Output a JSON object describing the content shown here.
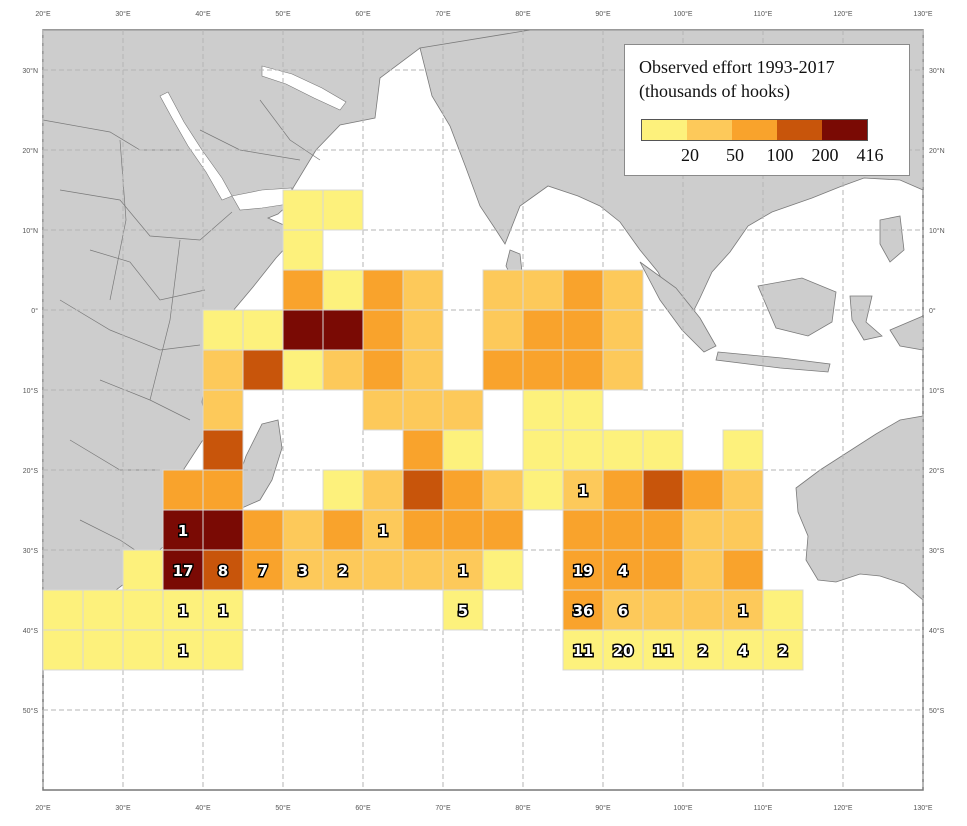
{
  "legend": {
    "title_line1": "Observed effort 1993-2017",
    "title_line2": "(thousands of hooks)",
    "breaks": [
      "20",
      "50",
      "100",
      "200",
      "416"
    ],
    "colors": [
      "#fdf17c",
      "#fdc95a",
      "#f9a32c",
      "#c8550b",
      "#7a0a04"
    ]
  },
  "axes": {
    "lon_labels": [
      "20°E",
      "30°E",
      "40°E",
      "50°E",
      "60°E",
      "70°E",
      "80°E",
      "90°E",
      "100°E",
      "110°E",
      "120°E",
      "130°E"
    ],
    "lat_labels": [
      "30°N",
      "20°N",
      "10°N",
      "0°",
      "10°S",
      "20°S",
      "30°S",
      "40°S",
      "50°S"
    ]
  },
  "colors": {
    "land": "#cdcdcd",
    "border": "#7a7a7a",
    "ocean": "#ffffff",
    "grid": "#b5b5b5",
    "cell_edge": "#d8d8d8"
  },
  "cells": [
    {
      "lon": 50,
      "lat": 15,
      "level": 0
    },
    {
      "lon": 55,
      "lat": 15,
      "level": 0
    },
    {
      "lon": 50,
      "lat": 10,
      "level": 0
    },
    {
      "lon": 50,
      "lat": 5,
      "level": 2
    },
    {
      "lon": 55,
      "lat": 5,
      "level": 0
    },
    {
      "lon": 60,
      "lat": 5,
      "level": 2
    },
    {
      "lon": 65,
      "lat": 5,
      "level": 1
    },
    {
      "lon": 75,
      "lat": 5,
      "level": 1
    },
    {
      "lon": 80,
      "lat": 5,
      "level": 1
    },
    {
      "lon": 85,
      "lat": 5,
      "level": 2
    },
    {
      "lon": 90,
      "lat": 5,
      "level": 1
    },
    {
      "lon": 40,
      "lat": 0,
      "level": 0
    },
    {
      "lon": 45,
      "lat": 0,
      "level": 0
    },
    {
      "lon": 50,
      "lat": 0,
      "level": 4
    },
    {
      "lon": 55,
      "lat": 0,
      "level": 4
    },
    {
      "lon": 60,
      "lat": 0,
      "level": 2
    },
    {
      "lon": 65,
      "lat": 0,
      "level": 1
    },
    {
      "lon": 75,
      "lat": 0,
      "level": 1
    },
    {
      "lon": 80,
      "lat": 0,
      "level": 2
    },
    {
      "lon": 85,
      "lat": 0,
      "level": 2
    },
    {
      "lon": 90,
      "lat": 0,
      "level": 1
    },
    {
      "lon": 40,
      "lat": -5,
      "level": 1
    },
    {
      "lon": 45,
      "lat": -5,
      "level": 3
    },
    {
      "lon": 50,
      "lat": -5,
      "level": 0
    },
    {
      "lon": 55,
      "lat": -5,
      "level": 1
    },
    {
      "lon": 60,
      "lat": -5,
      "level": 2
    },
    {
      "lon": 65,
      "lat": -5,
      "level": 1
    },
    {
      "lon": 75,
      "lat": -5,
      "level": 2
    },
    {
      "lon": 80,
      "lat": -5,
      "level": 2
    },
    {
      "lon": 85,
      "lat": -5,
      "level": 2
    },
    {
      "lon": 90,
      "lat": -5,
      "level": 1
    },
    {
      "lon": 40,
      "lat": -10,
      "level": 1
    },
    {
      "lon": 60,
      "lat": -10,
      "level": 1
    },
    {
      "lon": 65,
      "lat": -10,
      "level": 1
    },
    {
      "lon": 70,
      "lat": -10,
      "level": 1
    },
    {
      "lon": 80,
      "lat": -10,
      "level": 0
    },
    {
      "lon": 85,
      "lat": -10,
      "level": 0
    },
    {
      "lon": 40,
      "lat": -15,
      "level": 3
    },
    {
      "lon": 65,
      "lat": -15,
      "level": 2
    },
    {
      "lon": 70,
      "lat": -15,
      "level": 0
    },
    {
      "lon": 80,
      "lat": -15,
      "level": 0
    },
    {
      "lon": 85,
      "lat": -15,
      "level": 0
    },
    {
      "lon": 90,
      "lat": -15,
      "level": 0
    },
    {
      "lon": 95,
      "lat": -15,
      "level": 0
    },
    {
      "lon": 105,
      "lat": -15,
      "level": 0
    },
    {
      "lon": 35,
      "lat": -20,
      "level": 2
    },
    {
      "lon": 40,
      "lat": -20,
      "level": 2
    },
    {
      "lon": 55,
      "lat": -20,
      "level": 0
    },
    {
      "lon": 60,
      "lat": -20,
      "level": 1
    },
    {
      "lon": 65,
      "lat": -20,
      "level": 3
    },
    {
      "lon": 70,
      "lat": -20,
      "level": 2
    },
    {
      "lon": 75,
      "lat": -20,
      "level": 1
    },
    {
      "lon": 80,
      "lat": -20,
      "level": 0
    },
    {
      "lon": 85,
      "lat": -20,
      "level": 1,
      "count": "1"
    },
    {
      "lon": 90,
      "lat": -20,
      "level": 2
    },
    {
      "lon": 95,
      "lat": -20,
      "level": 3
    },
    {
      "lon": 100,
      "lat": -20,
      "level": 2
    },
    {
      "lon": 105,
      "lat": -20,
      "level": 1
    },
    {
      "lon": 35,
      "lat": -25,
      "level": 4,
      "count": "1"
    },
    {
      "lon": 40,
      "lat": -25,
      "level": 4
    },
    {
      "lon": 45,
      "lat": -25,
      "level": 2
    },
    {
      "lon": 50,
      "lat": -25,
      "level": 1
    },
    {
      "lon": 55,
      "lat": -25,
      "level": 2
    },
    {
      "lon": 60,
      "lat": -25,
      "level": 1,
      "count": "1"
    },
    {
      "lon": 65,
      "lat": -25,
      "level": 2
    },
    {
      "lon": 70,
      "lat": -25,
      "level": 2
    },
    {
      "lon": 75,
      "lat": -25,
      "level": 2
    },
    {
      "lon": 85,
      "lat": -25,
      "level": 2
    },
    {
      "lon": 90,
      "lat": -25,
      "level": 2
    },
    {
      "lon": 95,
      "lat": -25,
      "level": 2
    },
    {
      "lon": 100,
      "lat": -25,
      "level": 1
    },
    {
      "lon": 105,
      "lat": -25,
      "level": 1
    },
    {
      "lon": 30,
      "lat": -30,
      "level": 0
    },
    {
      "lon": 35,
      "lat": -30,
      "level": 4,
      "count": "17"
    },
    {
      "lon": 40,
      "lat": -30,
      "level": 3,
      "count": "8"
    },
    {
      "lon": 45,
      "lat": -30,
      "level": 2,
      "count": "7"
    },
    {
      "lon": 50,
      "lat": -30,
      "level": 1,
      "count": "3"
    },
    {
      "lon": 55,
      "lat": -30,
      "level": 1,
      "count": "2"
    },
    {
      "lon": 60,
      "lat": -30,
      "level": 1
    },
    {
      "lon": 65,
      "lat": -30,
      "level": 1
    },
    {
      "lon": 70,
      "lat": -30,
      "level": 1,
      "count": "1"
    },
    {
      "lon": 75,
      "lat": -30,
      "level": 0
    },
    {
      "lon": 85,
      "lat": -30,
      "level": 2,
      "count": "19"
    },
    {
      "lon": 90,
      "lat": -30,
      "level": 2,
      "count": "4"
    },
    {
      "lon": 95,
      "lat": -30,
      "level": 2
    },
    {
      "lon": 100,
      "lat": -30,
      "level": 1
    },
    {
      "lon": 105,
      "lat": -30,
      "level": 2
    },
    {
      "lon": 20,
      "lat": -35,
      "level": 0
    },
    {
      "lon": 25,
      "lat": -35,
      "level": 0
    },
    {
      "lon": 30,
      "lat": -35,
      "level": 0
    },
    {
      "lon": 35,
      "lat": -35,
      "level": 0,
      "count": "1"
    },
    {
      "lon": 40,
      "lat": -35,
      "level": 0,
      "count": "1"
    },
    {
      "lon": 70,
      "lat": -35,
      "level": 0,
      "count": "5"
    },
    {
      "lon": 85,
      "lat": -35,
      "level": 2,
      "count": "36"
    },
    {
      "lon": 90,
      "lat": -35,
      "level": 1,
      "count": "6"
    },
    {
      "lon": 95,
      "lat": -35,
      "level": 1
    },
    {
      "lon": 100,
      "lat": -35,
      "level": 1
    },
    {
      "lon": 105,
      "lat": -35,
      "level": 1,
      "count": "1"
    },
    {
      "lon": 110,
      "lat": -35,
      "level": 0
    },
    {
      "lon": 20,
      "lat": -40,
      "level": 0
    },
    {
      "lon": 25,
      "lat": -40,
      "level": 0
    },
    {
      "lon": 30,
      "lat": -40,
      "level": 0
    },
    {
      "lon": 35,
      "lat": -40,
      "level": 0,
      "count": "1"
    },
    {
      "lon": 40,
      "lat": -40,
      "level": 0
    },
    {
      "lon": 85,
      "lat": -40,
      "level": 0,
      "count": "11"
    },
    {
      "lon": 90,
      "lat": -40,
      "level": 0,
      "count": "20"
    },
    {
      "lon": 95,
      "lat": -40,
      "level": 0,
      "count": "11"
    },
    {
      "lon": 100,
      "lat": -40,
      "level": 0,
      "count": "2"
    },
    {
      "lon": 105,
      "lat": -40,
      "level": 0,
      "count": "4"
    },
    {
      "lon": 110,
      "lat": -40,
      "level": 0,
      "count": "2"
    }
  ]
}
